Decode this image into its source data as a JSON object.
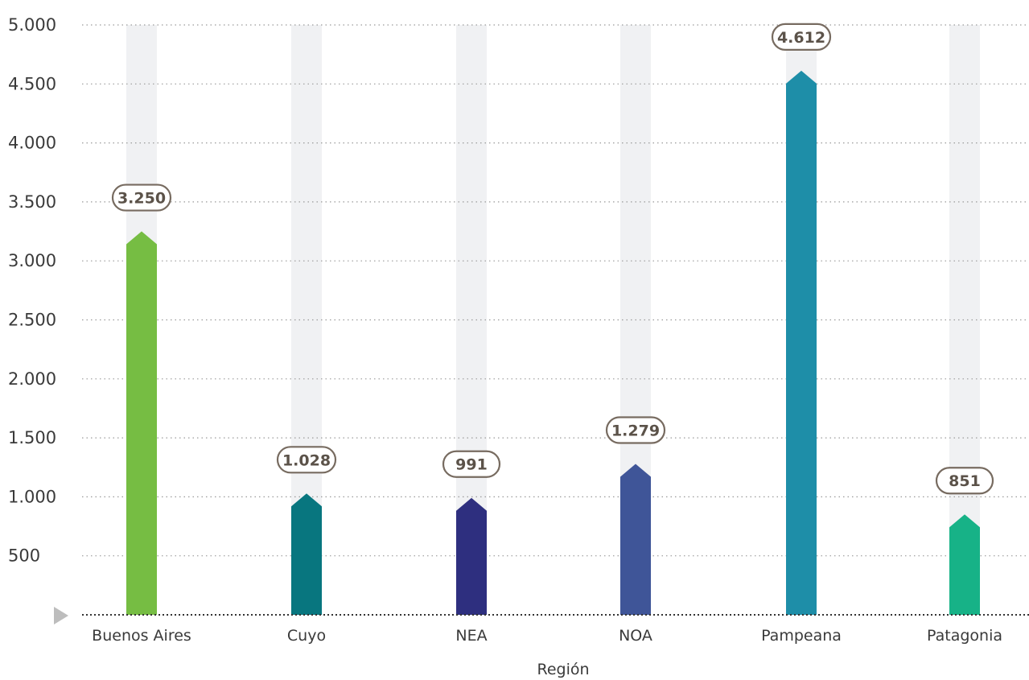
{
  "chart_data": {
    "type": "bar",
    "xlabel": "Región",
    "ylabel": "",
    "categories": [
      "Buenos Aires",
      "Cuyo",
      "NEA",
      "NOA",
      "Pampeana",
      "Patagonia"
    ],
    "values": [
      3250,
      1028,
      991,
      1279,
      4612,
      851
    ],
    "value_labels": [
      "3.250",
      "1.028",
      "991",
      "1.279",
      "4.612",
      "851"
    ],
    "ylim": [
      0,
      5000
    ],
    "yticks": [
      500,
      1000,
      1500,
      2000,
      2500,
      3000,
      3500,
      4000,
      4500,
      5000
    ],
    "ytick_labels": [
      "500",
      "1.000",
      "1.500",
      "2.000",
      "2.500",
      "3.000",
      "3.500",
      "4.000",
      "4.500",
      "5.000"
    ],
    "colors": [
      "#76bd43",
      "#08767f",
      "#2e2f7f",
      "#3f5598",
      "#1e8ea8",
      "#17b287"
    ],
    "track_color": "#f0f1f3",
    "label_border_color": "#776b60",
    "grid": true
  }
}
